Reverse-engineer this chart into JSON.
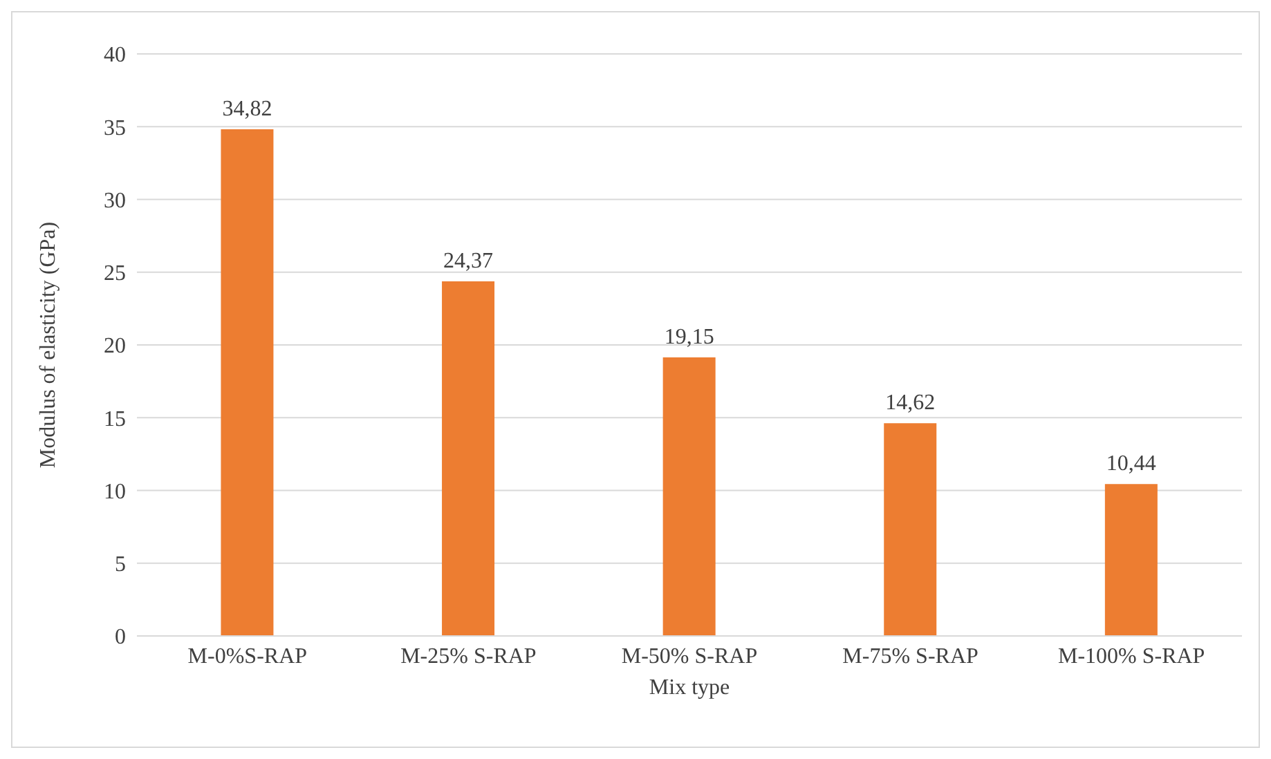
{
  "chart_data": {
    "type": "bar",
    "xlabel": "Mix type",
    "ylabel": "Modulus of elasticity (GPa)",
    "categories": [
      "M-0%S-RAP",
      "M-25% S-RAP",
      "M-50% S-RAP",
      "M-75% S-RAP",
      "M-100% S-RAP"
    ],
    "values": [
      34.82,
      24.37,
      19.15,
      14.62,
      10.44
    ],
    "value_labels": [
      "34,82",
      "24,37",
      "19,15",
      "14,62",
      "10,44"
    ],
    "color": "#ed7d31",
    "ylim": [
      0,
      40
    ],
    "yticks": [
      0,
      5,
      10,
      15,
      20,
      25,
      30,
      35,
      40
    ],
    "grid": "y"
  }
}
